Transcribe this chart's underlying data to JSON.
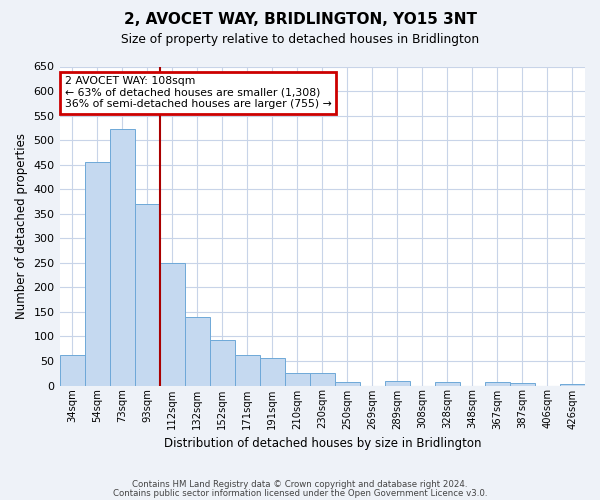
{
  "title": "2, AVOCET WAY, BRIDLINGTON, YO15 3NT",
  "subtitle": "Size of property relative to detached houses in Bridlington",
  "xlabel": "Distribution of detached houses by size in Bridlington",
  "ylabel": "Number of detached properties",
  "bar_labels": [
    "34sqm",
    "54sqm",
    "73sqm",
    "93sqm",
    "112sqm",
    "132sqm",
    "152sqm",
    "171sqm",
    "191sqm",
    "210sqm",
    "230sqm",
    "250sqm",
    "269sqm",
    "289sqm",
    "308sqm",
    "328sqm",
    "348sqm",
    "367sqm",
    "387sqm",
    "406sqm",
    "426sqm"
  ],
  "bar_values": [
    62,
    456,
    522,
    370,
    249,
    140,
    93,
    62,
    57,
    25,
    25,
    8,
    0,
    10,
    0,
    8,
    0,
    7,
    5,
    0,
    3
  ],
  "bar_color": "#c5d9f0",
  "bar_edge_color": "#6ea8d8",
  "ylim": [
    0,
    650
  ],
  "yticks": [
    0,
    50,
    100,
    150,
    200,
    250,
    300,
    350,
    400,
    450,
    500,
    550,
    600,
    650
  ],
  "vline_color": "#aa0000",
  "annotation_title": "2 AVOCET WAY: 108sqm",
  "annotation_line1": "← 63% of detached houses are smaller (1,308)",
  "annotation_line2": "36% of semi-detached houses are larger (755) →",
  "annotation_box_color": "#cc0000",
  "footer_line1": "Contains HM Land Registry data © Crown copyright and database right 2024.",
  "footer_line2": "Contains public sector information licensed under the Open Government Licence v3.0.",
  "background_color": "#eef2f8",
  "plot_bg_color": "#ffffff",
  "grid_color": "#c8d4e8"
}
